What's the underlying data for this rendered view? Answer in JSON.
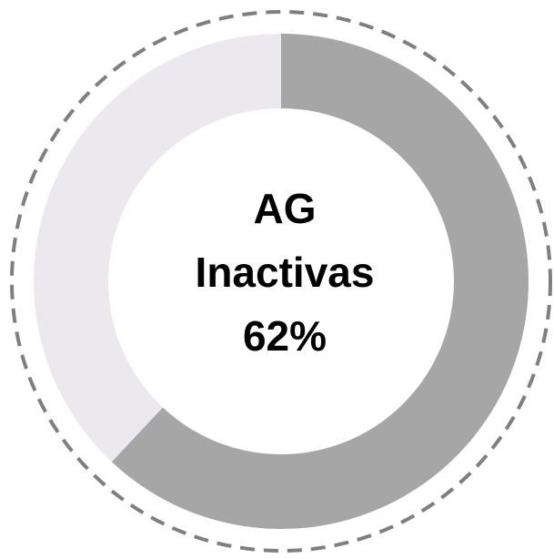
{
  "chart_data": {
    "type": "donut",
    "center_lines": [
      "AG",
      "Inactivas"
    ],
    "values": [
      62,
      38
    ],
    "value_labels": [
      "62%",
      null
    ],
    "colors": [
      "#a6a6a6",
      "#ebe9ee"
    ],
    "outline": "dashed"
  }
}
